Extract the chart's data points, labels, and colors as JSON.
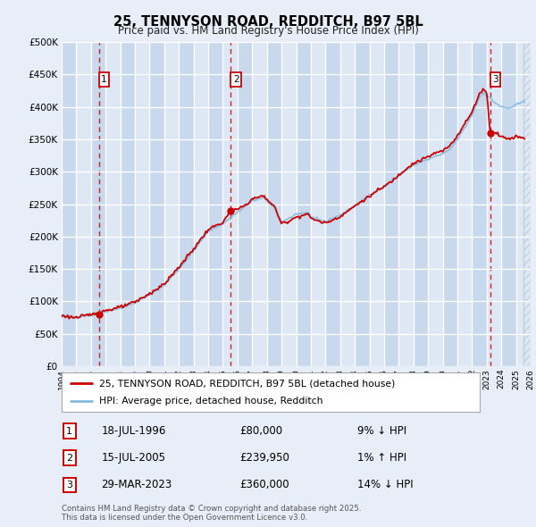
{
  "title": "25, TENNYSON ROAD, REDDITCH, B97 5BL",
  "subtitle": "Price paid vs. HM Land Registry's House Price Index (HPI)",
  "legend_line1": "25, TENNYSON ROAD, REDDITCH, B97 5BL (detached house)",
  "legend_line2": "HPI: Average price, detached house, Redditch",
  "footer_line1": "Contains HM Land Registry data © Crown copyright and database right 2025.",
  "footer_line2": "This data is licensed under the Open Government Licence v3.0.",
  "hpi_color": "#88bbdd",
  "price_color": "#cc0000",
  "background_color": "#e8eef8",
  "plot_bg_light": "#dde8f4",
  "plot_bg_dark": "#c8d8ed",
  "grid_color": "#ffffff",
  "transactions": [
    {
      "label": "1",
      "date": 1996.54,
      "price": 80000,
      "x_line": 1996.54
    },
    {
      "label": "2",
      "date": 2005.54,
      "price": 239950,
      "x_line": 2005.54
    },
    {
      "label": "3",
      "date": 2023.24,
      "price": 360000,
      "x_line": 2023.24
    }
  ],
  "transaction_table": [
    {
      "num": "1",
      "date": "18-JUL-1996",
      "price": "£80,000",
      "hpi": "9% ↓ HPI"
    },
    {
      "num": "2",
      "date": "15-JUL-2005",
      "price": "£239,950",
      "hpi": "1% ↑ HPI"
    },
    {
      "num": "3",
      "date": "29-MAR-2023",
      "price": "£360,000",
      "hpi": "14% ↓ HPI"
    }
  ],
  "ylim": [
    0,
    500000
  ],
  "yticks": [
    0,
    50000,
    100000,
    150000,
    200000,
    250000,
    300000,
    350000,
    400000,
    450000,
    500000
  ],
  "xlim_start": 1994,
  "xlim_end": 2026,
  "xtick_years": [
    1994,
    1995,
    1996,
    1997,
    1998,
    1999,
    2000,
    2001,
    2002,
    2003,
    2004,
    2005,
    2006,
    2007,
    2008,
    2009,
    2010,
    2011,
    2012,
    2013,
    2014,
    2015,
    2016,
    2017,
    2018,
    2019,
    2020,
    2021,
    2022,
    2023,
    2024,
    2025,
    2026
  ],
  "data_end_year": 2025.5
}
